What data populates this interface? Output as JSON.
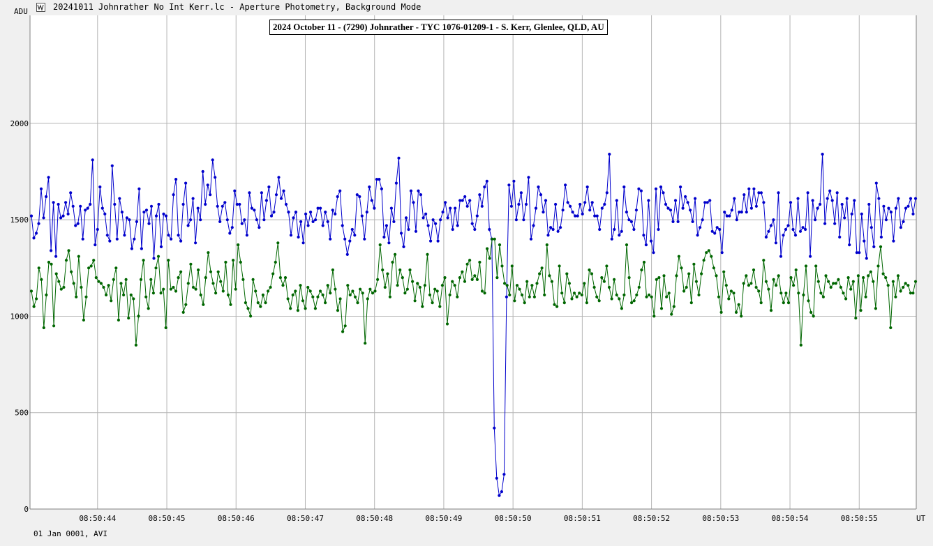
{
  "window": {
    "title": "20241011 Johnrather No Int Kerr.lc - Aperture Photometry, Background Mode",
    "icon": "lightcurve-app-icon"
  },
  "footer": {
    "text": "01 Jan 0001, AVI"
  },
  "colors": {
    "target": "#0000cc",
    "comparison": "#006600",
    "grid": "#b4b4b4",
    "plot_bg": "#ffffff"
  },
  "chart_data": {
    "type": "line",
    "title": "2024 October 11 - (7290) Johnrather - TYC 1076-01209-1 - S. Kerr, Glenlee, QLD, AU",
    "ylabel": "ADU",
    "xlabel": "UT",
    "ylim": [
      0,
      2560
    ],
    "xlim": [
      "08:50:43.0243",
      "08:50:55.8237"
    ],
    "grid": true,
    "y_ticks": [
      0,
      500,
      1000,
      1500,
      2000
    ],
    "x_ticks": [
      "08:50:44",
      "08:50:45",
      "08:50:46",
      "08:50:47",
      "08:50:48",
      "08:50:49",
      "08:50:50",
      "08:50:51",
      "08:50:52",
      "08:50:53",
      "08:50:54",
      "08:50:55"
    ],
    "series": [
      {
        "color": "#0000cc",
        "values": [
          1520,
          1405,
          1430,
          1480,
          1660,
          1510,
          1620,
          1720,
          1340,
          1590,
          1310,
          1580,
          1510,
          1520,
          1590,
          1530,
          1640,
          1570,
          1470,
          1480,
          1570,
          1400,
          1550,
          1560,
          1580,
          1810,
          1370,
          1450,
          1670,
          1560,
          1530,
          1420,
          1390,
          1780,
          1580,
          1400,
          1610,
          1540,
          1420,
          1510,
          1500,
          1350,
          1400,
          1490,
          1660,
          1350,
          1540,
          1550,
          1480,
          1570,
          1300,
          1520,
          1580,
          1360,
          1530,
          1520,
          1420,
          1400,
          1630,
          1710,
          1420,
          1390,
          1580,
          1690,
          1470,
          1500,
          1610,
          1380,
          1560,
          1500,
          1750,
          1580,
          1680,
          1630,
          1810,
          1720,
          1570,
          1490,
          1570,
          1590,
          1500,
          1430,
          1460,
          1650,
          1580,
          1580,
          1480,
          1500,
          1420,
          1640,
          1560,
          1550,
          1500,
          1460,
          1640,
          1500,
          1600,
          1670,
          1520,
          1540,
          1630,
          1720,
          1610,
          1650,
          1580,
          1540,
          1420,
          1510,
          1540,
          1410,
          1490,
          1380,
          1530,
          1470,
          1540,
          1490,
          1500,
          1560,
          1560,
          1470,
          1540,
          1490,
          1400,
          1550,
          1530,
          1620,
          1650,
          1470,
          1400,
          1320,
          1390,
          1450,
          1420,
          1630,
          1620,
          1520,
          1400,
          1540,
          1670,
          1600,
          1560,
          1710,
          1710,
          1660,
          1410,
          1470,
          1380,
          1560,
          1490,
          1690,
          1820,
          1430,
          1360,
          1510,
          1450,
          1650,
          1590,
          1440,
          1650,
          1630,
          1510,
          1530,
          1470,
          1390,
          1500,
          1480,
          1390,
          1500,
          1540,
          1590,
          1510,
          1560,
          1450,
          1560,
          1470,
          1600,
          1600,
          1620,
          1570,
          1600,
          1480,
          1450,
          1520,
          1630,
          1570,
          1670,
          1700,
          1450,
          1400,
          420,
          160,
          70,
          90,
          180,
          1100,
          1680,
          1570,
          1700,
          1500,
          1580,
          1640,
          1500,
          1580,
          1720,
          1400,
          1470,
          1560,
          1670,
          1630,
          1540,
          1600,
          1420,
          1460,
          1450,
          1580,
          1440,
          1460,
          1550,
          1680,
          1590,
          1570,
          1540,
          1520,
          1520,
          1580,
          1530,
          1590,
          1670,
          1550,
          1590,
          1520,
          1520,
          1450,
          1560,
          1580,
          1640,
          1840,
          1400,
          1450,
          1600,
          1420,
          1440,
          1670,
          1540,
          1500,
          1490,
          1450,
          1550,
          1660,
          1650,
          1420,
          1370,
          1600,
          1390,
          1330,
          1660,
          1450,
          1670,
          1640,
          1580,
          1560,
          1550,
          1490,
          1600,
          1490,
          1670,
          1560,
          1620,
          1590,
          1550,
          1490,
          1610,
          1420,
          1460,
          1500,
          1590,
          1590,
          1600,
          1440,
          1430,
          1460,
          1450,
          1330,
          1540,
          1520,
          1520,
          1550,
          1610,
          1500,
          1540,
          1540,
          1630,
          1540,
          1660,
          1560,
          1660,
          1570,
          1640,
          1640,
          1590,
          1410,
          1440,
          1470,
          1500,
          1380,
          1640,
          1310,
          1420,
          1450,
          1470,
          1590,
          1450,
          1420,
          1610,
          1440,
          1460,
          1450,
          1640,
          1310,
          1600,
          1500,
          1560,
          1580,
          1840,
          1480,
          1610,
          1650,
          1600,
          1480,
          1640,
          1410,
          1580,
          1510,
          1610,
          1370,
          1530,
          1600,
          1330,
          1330,
          1530,
          1390,
          1300,
          1580,
          1460,
          1360,
          1690,
          1610,
          1410,
          1570,
          1500,
          1560,
          1540,
          1390,
          1560,
          1610,
          1460,
          1490,
          1560,
          1570,
          1610,
          1530,
          1610
        ]
      },
      {
        "color": "#006600",
        "values": [
          1130,
          1050,
          1090,
          1250,
          1190,
          940,
          1110,
          1280,
          1270,
          950,
          1220,
          1180,
          1140,
          1150,
          1290,
          1340,
          1230,
          1170,
          1100,
          1310,
          1150,
          980,
          1100,
          1250,
          1260,
          1290,
          1200,
          1180,
          1170,
          1150,
          1110,
          1160,
          1080,
          1190,
          1250,
          980,
          1170,
          1110,
          1190,
          990,
          1110,
          1090,
          850,
          1000,
          1190,
          1290,
          1100,
          1040,
          1190,
          1120,
          1250,
          1310,
          1120,
          1140,
          940,
          1290,
          1140,
          1150,
          1130,
          1200,
          1230,
          1020,
          1060,
          1170,
          1270,
          1150,
          1140,
          1240,
          1110,
          1060,
          1200,
          1330,
          1230,
          1170,
          1120,
          1230,
          1180,
          1130,
          1280,
          1110,
          1060,
          1290,
          1140,
          1370,
          1280,
          1190,
          1070,
          1040,
          1000,
          1190,
          1130,
          1070,
          1050,
          1110,
          1070,
          1130,
          1150,
          1220,
          1280,
          1380,
          1200,
          1160,
          1200,
          1090,
          1040,
          1110,
          1130,
          1030,
          1160,
          1080,
          1040,
          1150,
          1130,
          1100,
          1040,
          1100,
          1130,
          1110,
          1070,
          1160,
          1120,
          1240,
          1140,
          1030,
          1090,
          920,
          950,
          1160,
          1110,
          1130,
          1100,
          1070,
          1140,
          1120,
          860,
          1090,
          1140,
          1120,
          1130,
          1190,
          1370,
          1240,
          1150,
          1220,
          1100,
          1280,
          1320,
          1160,
          1240,
          1200,
          1120,
          1140,
          1240,
          1180,
          1080,
          1170,
          1150,
          1050,
          1160,
          1320,
          1110,
          1070,
          1140,
          1130,
          1050,
          1160,
          1200,
          960,
          1110,
          1180,
          1160,
          1100,
          1200,
          1230,
          1180,
          1270,
          1290,
          1190,
          1210,
          1190,
          1280,
          1130,
          1120,
          1350,
          1300,
          1400,
          1400,
          1200,
          1370,
          1260,
          1170,
          1160,
          1110,
          1260,
          1080,
          1160,
          1140,
          1110,
          1070,
          1180,
          1100,
          1160,
          1100,
          1170,
          1220,
          1250,
          1110,
          1370,
          1210,
          1180,
          1060,
          1050,
          1260,
          1120,
          1070,
          1220,
          1170,
          1090,
          1120,
          1100,
          1120,
          1110,
          1170,
          1070,
          1240,
          1220,
          1150,
          1100,
          1080,
          1200,
          1180,
          1260,
          1150,
          1090,
          1190,
          1110,
          1090,
          1040,
          1110,
          1370,
          1200,
          1070,
          1080,
          1110,
          1150,
          1240,
          1280,
          1100,
          1110,
          1100,
          1000,
          1190,
          1200,
          1040,
          1210,
          1100,
          1120,
          1010,
          1050,
          1210,
          1310,
          1250,
          1130,
          1150,
          1220,
          1070,
          1270,
          1180,
          1110,
          1220,
          1290,
          1330,
          1340,
          1310,
          1250,
          1210,
          1100,
          1020,
          1230,
          1160,
          1090,
          1130,
          1120,
          1020,
          1060,
          1000,
          1170,
          1210,
          1160,
          1170,
          1240,
          1150,
          1130,
          1070,
          1290,
          1180,
          1140,
          1030,
          1190,
          1160,
          1210,
          1120,
          1070,
          1120,
          1070,
          1200,
          1160,
          1240,
          1120,
          850,
          1110,
          1260,
          1080,
          1020,
          1000,
          1260,
          1180,
          1120,
          1100,
          1210,
          1180,
          1150,
          1170,
          1170,
          1190,
          1150,
          1120,
          1090,
          1200,
          1140,
          1180,
          990,
          1210,
          1030,
          1200,
          1100,
          1210,
          1230,
          1180,
          1040,
          1260,
          1360,
          1220,
          1200,
          1160,
          940,
          1180,
          1100,
          1210,
          1130,
          1150,
          1170,
          1160,
          1120,
          1120,
          1180
        ]
      }
    ]
  }
}
